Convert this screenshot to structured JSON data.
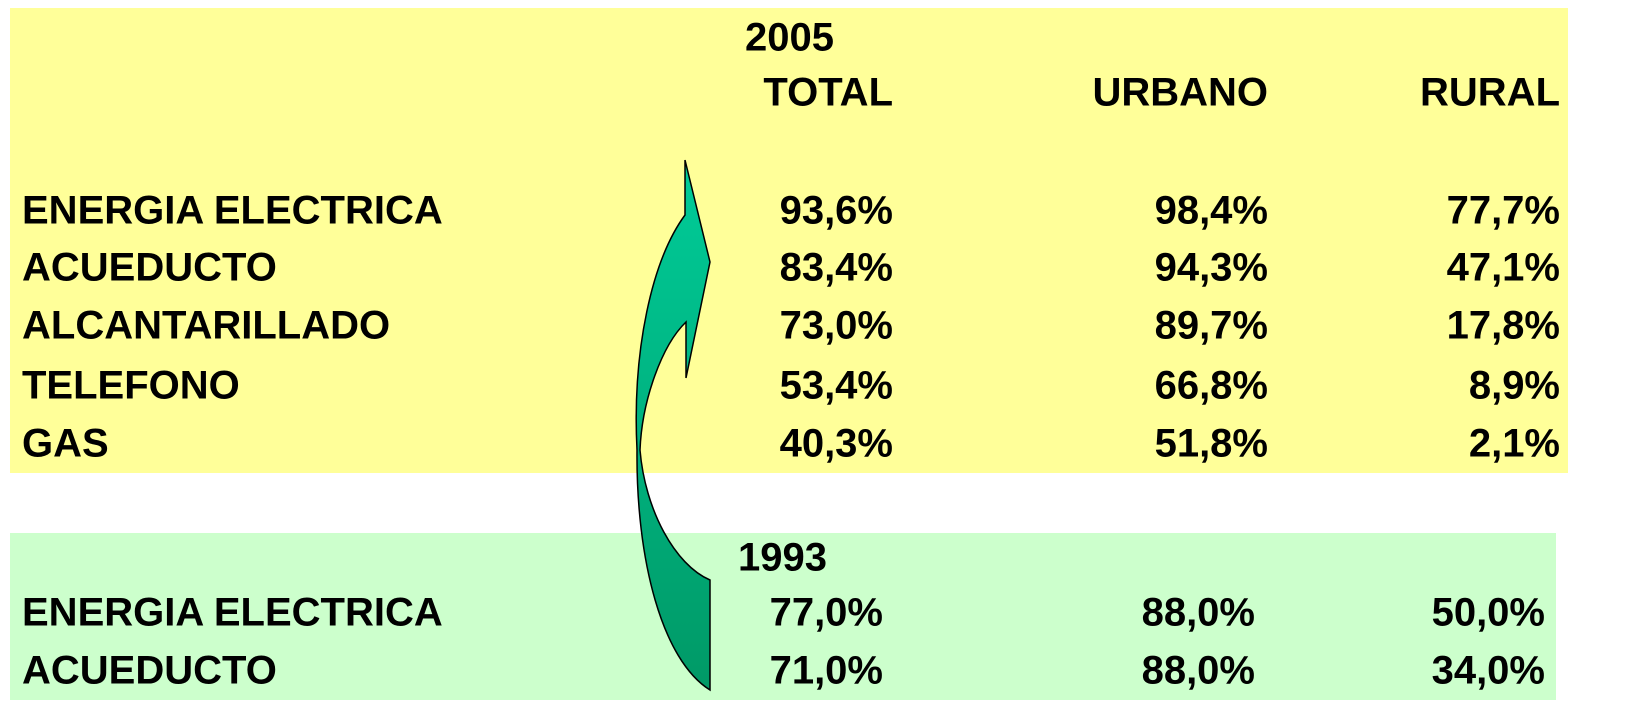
{
  "sections": [
    {
      "year": "2005",
      "columns": [
        "TOTAL",
        "URBANO",
        "RURAL"
      ],
      "rows": [
        [
          "ENERGIA ELECTRICA",
          "93,6%",
          "98,4%",
          "77,7%"
        ],
        [
          "ACUEDUCTO",
          "83,4%",
          "94,3%",
          "47,1%"
        ],
        [
          "ALCANTARILLADO",
          "73,0%",
          "89,7%",
          "17,8%"
        ],
        [
          "TELEFONO",
          "53,4%",
          "66,8%",
          "8,9%"
        ],
        [
          "GAS",
          "40,3%",
          "51,8%",
          "2,1%"
        ]
      ]
    },
    {
      "year": "1993",
      "rows": [
        [
          "ENERGIA ELECTRICA",
          "77,0%",
          "88,0%",
          "50,0%"
        ],
        [
          "ACUEDUCTO",
          "71,0%",
          "88,0%",
          "34,0%"
        ]
      ]
    }
  ]
}
